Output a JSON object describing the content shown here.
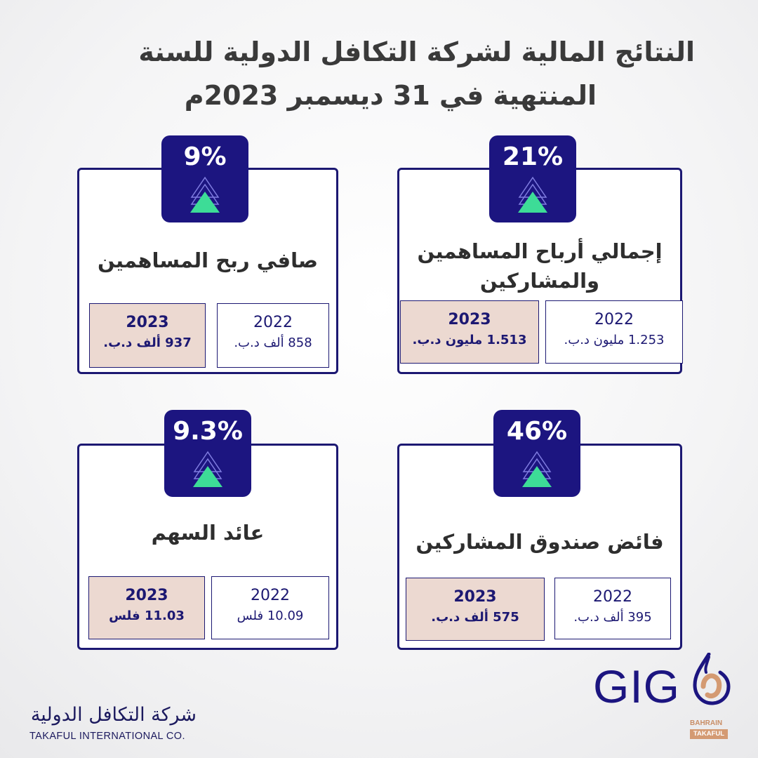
{
  "header": {
    "title_line1": "النتائج المالية لشركة التكافل الدولية للسنة",
    "title_line2": "المنتهية في 31 ديسمبر 2023م"
  },
  "cards": [
    {
      "percent": "21%",
      "label_line1": "إجمالي أرباح المساهمين",
      "label_line2": "والمشاركين",
      "y2023": "2023",
      "v2023": "1.513 مليون د.ب.",
      "y2022": "2022",
      "v2022": "1.253 مليون د.ب."
    },
    {
      "percent": "9%",
      "label_line1": "صافي ربح المساهمين",
      "label_line2": "",
      "y2023": "2023",
      "v2023": "937 ألف  د.ب.",
      "y2022": "2022",
      "v2022": "858 ألف د.ب."
    },
    {
      "percent": "46%",
      "label_line1": "فائض صندوق المشاركين",
      "label_line2": "",
      "y2023": "2023",
      "v2023": "575 ألف  د.ب.",
      "y2022": "2022",
      "v2022": "395 ألف د.ب."
    },
    {
      "percent": "9.3%",
      "label_line1": "عائد السهم",
      "label_line2": "",
      "y2023": "2023",
      "v2023": "11.03 فلس",
      "y2022": "2022",
      "v2022": "10.09 فلس"
    }
  ],
  "footer": {
    "company_ar": "شركة التكافل الدولية",
    "company_en": "TAKAFUL INTERNATIONAL CO.",
    "logo_text": "GIG",
    "logo_sub1": "BAHRAIN",
    "logo_sub2": "TAKAFUL"
  },
  "colors": {
    "navy": "#1c1580",
    "green_arrow": "#3ddc97",
    "highlight_2023": "#ecd9d1",
    "logo_orange": "#d49a72"
  },
  "icons": [
    "up-arrow-icon"
  ]
}
